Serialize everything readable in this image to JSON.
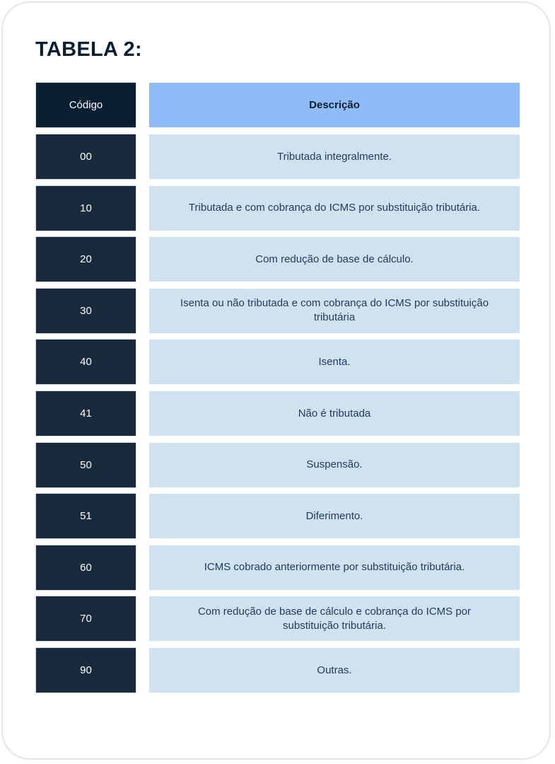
{
  "title": "TABELA 2:",
  "table": {
    "headers": {
      "code": "Código",
      "description": "Descrição"
    },
    "rows": [
      {
        "code": "00",
        "description": "Tributada integralmente."
      },
      {
        "code": "10",
        "description": "Tributada e com cobrança do ICMS por substituição tributária."
      },
      {
        "code": "20",
        "description": "Com redução de base de cálculo."
      },
      {
        "code": "30",
        "description": "Isenta ou não tributada e com cobrança do ICMS por substituição tributária"
      },
      {
        "code": "40",
        "description": "Isenta."
      },
      {
        "code": "41",
        "description": "Não é tributada"
      },
      {
        "code": "50",
        "description": "Suspensão."
      },
      {
        "code": "51",
        "description": "Diferimento."
      },
      {
        "code": "60",
        "description": "ICMS cobrado anteriormente por substituição tributária."
      },
      {
        "code": "70",
        "description": "Com redução de base de cálculo e cobrança do ICMS por substituição tributária."
      },
      {
        "code": "90",
        "description": "Outras."
      }
    ]
  },
  "colors": {
    "header_code": "#0b1f33",
    "code_cell": "#1a2a3d",
    "header_description": "#8fbcf7",
    "description_cell": "#d0e2f0"
  }
}
